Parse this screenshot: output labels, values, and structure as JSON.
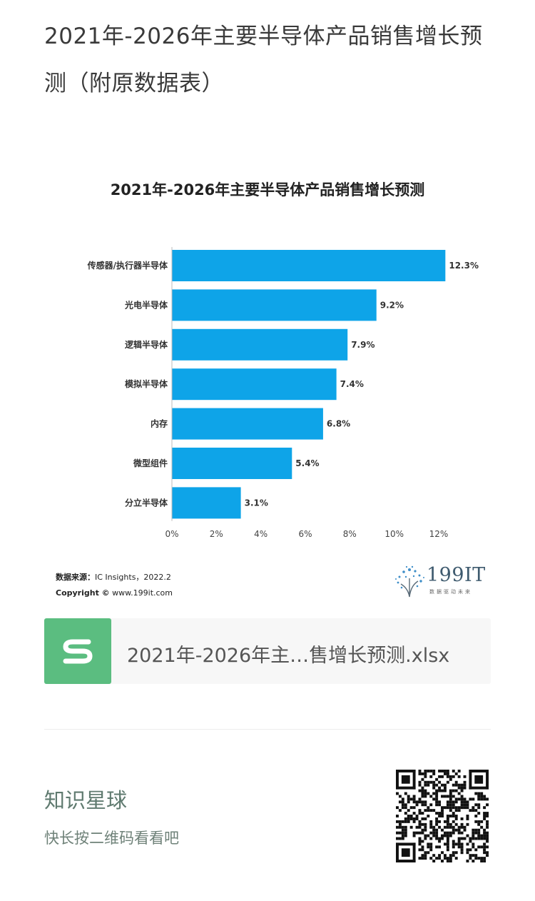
{
  "article": {
    "title": "2021年-2026年主要半导体产品销售增长预测（附原数据表）"
  },
  "chart_data": {
    "type": "bar",
    "orientation": "horizontal",
    "title": "2021年-2026年主要半导体产品销售增长预测",
    "categories": [
      "传感器/执行器半导体",
      "光电半导体",
      "逻辑半导体",
      "模拟半导体",
      "内存",
      "微型组件",
      "分立半导体"
    ],
    "values": [
      12.3,
      9.2,
      7.9,
      7.4,
      6.8,
      5.4,
      3.1
    ],
    "value_labels": [
      "12.3%",
      "9.2%",
      "7.9%",
      "7.4%",
      "6.8%",
      "5.4%",
      "3.1%"
    ],
    "xlim": [
      0,
      12
    ],
    "xticks": [
      "0%",
      "2%",
      "4%",
      "6%",
      "8%",
      "10%",
      "12%"
    ],
    "xlabel": "",
    "ylabel": "",
    "color": "#0ea4e8",
    "grid": false,
    "legend": "none"
  },
  "source": {
    "label": "数据来源：",
    "text": "IC Insights，2022.2",
    "copyright_label": "Copyright ©",
    "copyright_site": "www.199it.com"
  },
  "brand": {
    "name": "199IT",
    "slogan": "数据驱动未来",
    "accent": "#3e5a6e"
  },
  "attachment": {
    "icon": "spreadsheet-icon",
    "file_name": "2021年-2026年主…售增长预测.xlsx",
    "icon_color": "#5bbd80"
  },
  "promo": {
    "title": "知识星球",
    "subtitle": "快长按二维码看看吧",
    "qr_icon": "qr-code-icon"
  }
}
